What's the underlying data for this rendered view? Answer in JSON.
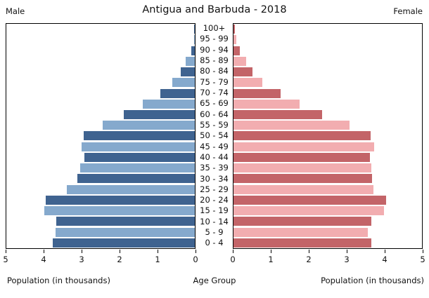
{
  "title": "Antigua and Barbuda - 2018",
  "left_header": "Male",
  "right_header": "Female",
  "axis": {
    "male_ticks": [
      "5",
      "4",
      "3",
      "2",
      "1",
      "0"
    ],
    "female_ticks": [
      "0",
      "1",
      "2",
      "3",
      "4",
      "5"
    ],
    "left_xlabel": "Population (in thousands)",
    "center_xlabel": "Age Group",
    "right_xlabel": "Population (in thousands)"
  },
  "colors": {
    "male_dark": "#3f6390",
    "male_light": "#85a9cd",
    "female_dark": "#c36468",
    "female_light": "#f2adb0",
    "border": "#000000",
    "background": "#ffffff"
  },
  "chart_data": {
    "type": "bar",
    "subtype": "population-pyramid",
    "title": "Antigua and Barbuda - 2018",
    "unit": "Population (in thousands)",
    "xlim_per_side": [
      0,
      5
    ],
    "grid": false,
    "age_groups_top_to_bottom": [
      "100+",
      "95 - 99",
      "90 - 94",
      "85 - 89",
      "80 - 84",
      "75 - 79",
      "70 - 74",
      "65 - 69",
      "60 - 64",
      "55 - 59",
      "50 - 54",
      "45 - 49",
      "40 - 44",
      "35 - 39",
      "30 - 34",
      "25 - 29",
      "20 - 24",
      "15 - 19",
      "10 - 14",
      "5 - 9",
      "0 - 4"
    ],
    "series": [
      {
        "name": "Male",
        "side": "left",
        "values": [
          0.02,
          0.02,
          0.09,
          0.24,
          0.37,
          0.6,
          0.91,
          1.39,
          1.88,
          2.45,
          2.95,
          3.0,
          2.93,
          3.04,
          3.12,
          3.4,
          3.95,
          4.0,
          3.68,
          3.69,
          3.76
        ]
      },
      {
        "name": "Female",
        "side": "right",
        "values": [
          0.03,
          0.08,
          0.17,
          0.33,
          0.51,
          0.77,
          1.25,
          1.76,
          2.35,
          3.08,
          3.64,
          3.73,
          3.62,
          3.66,
          3.68,
          3.72,
          4.05,
          3.99,
          3.65,
          3.57,
          3.65
        ]
      }
    ]
  }
}
